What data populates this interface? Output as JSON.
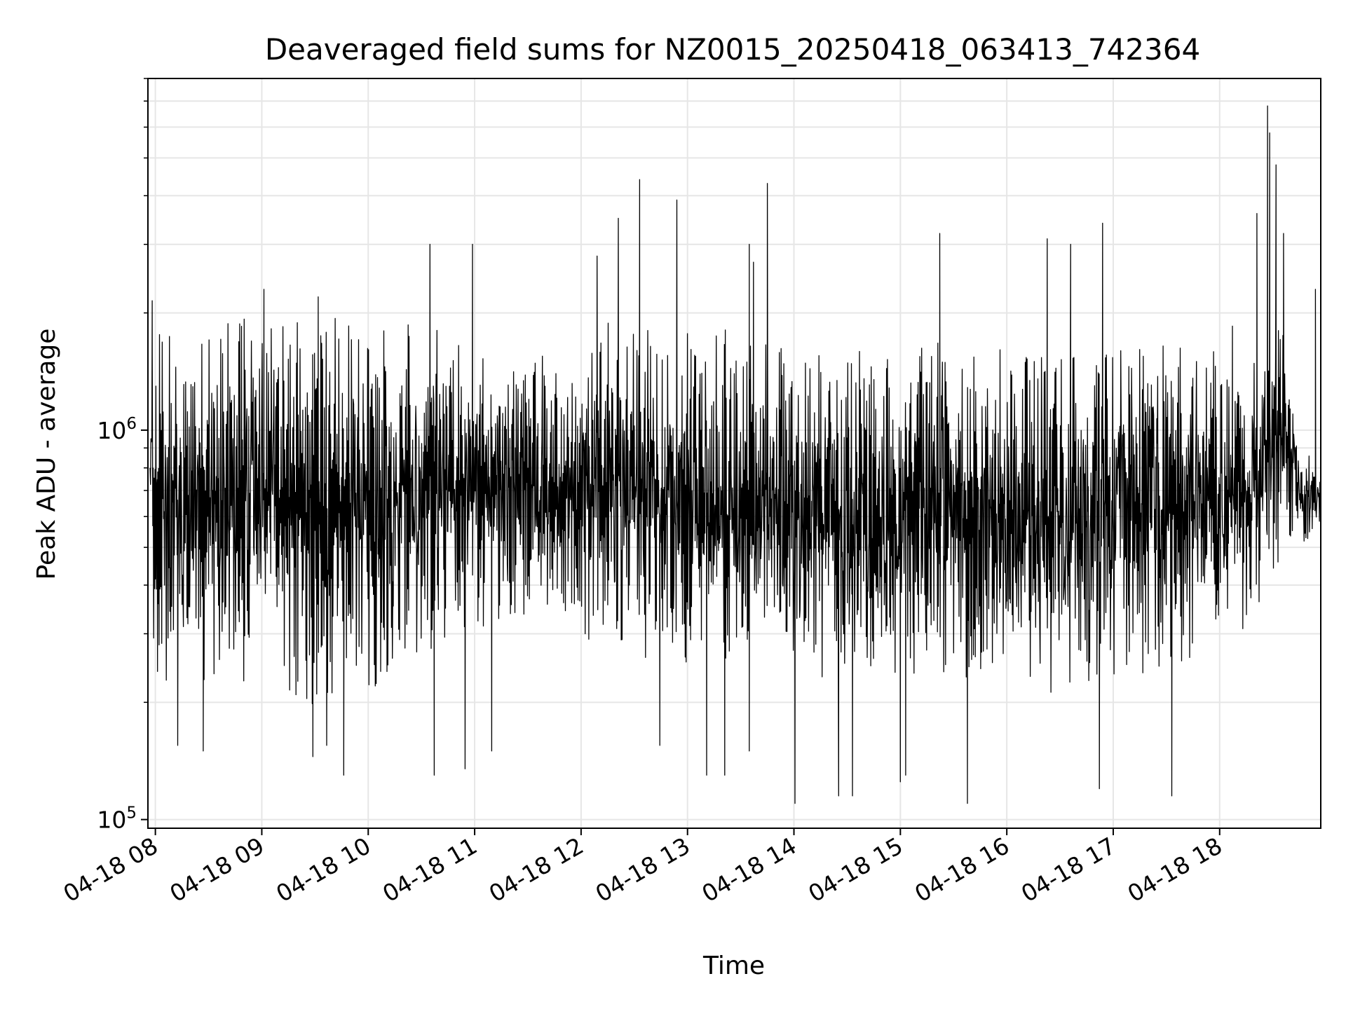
{
  "chart_data": {
    "type": "line",
    "title": "Deaveraged field sums for NZ0015_20250418_063413_742364",
    "xlabel": "Time",
    "ylabel": "Peak ADU - average",
    "yscale": "log",
    "ylim": [
      95000,
      8000000
    ],
    "y_ticks": [
      {
        "value": 100000,
        "base": "10",
        "exp": "5"
      },
      {
        "value": 1000000,
        "base": "10",
        "exp": "6"
      }
    ],
    "x_ticks": [
      "04-18 08",
      "04-18 09",
      "04-18 10",
      "04-18 11",
      "04-18 12",
      "04-18 13",
      "04-18 14",
      "04-18 15",
      "04-18 16",
      "04-18 17",
      "04-18 18"
    ],
    "x_tick_hours": [
      8,
      9,
      10,
      11,
      12,
      13,
      14,
      15,
      16,
      17,
      18
    ],
    "xlim_hours": [
      7.93,
      18.95
    ],
    "grid": true,
    "line_color": "#000000",
    "series": [
      {
        "x_hours": [
          7.95,
          8.1,
          8.25,
          8.5,
          8.75,
          9.0,
          9.25,
          9.5,
          9.75,
          10.0,
          10.25,
          10.5,
          10.75,
          11.0,
          11.25,
          11.5,
          11.75,
          11.95,
          12.05,
          12.25,
          12.5,
          12.75,
          13.0,
          13.25,
          13.5,
          13.75,
          14.0,
          14.25,
          14.5,
          14.75,
          15.0,
          15.25,
          15.5,
          15.75,
          16.0,
          16.25,
          16.5,
          16.75,
          17.0,
          17.25,
          17.5,
          17.75,
          18.0,
          18.25,
          18.45,
          18.5,
          18.6,
          18.75,
          18.95
        ],
        "high": [
          2100000,
          2050000,
          2000000,
          2050000,
          2000000,
          2050000,
          2000000,
          1950000,
          2000000,
          2000000,
          1900000,
          1850000,
          1800000,
          1750000,
          1600000,
          1550000,
          1550000,
          1500000,
          1850000,
          1900000,
          1900000,
          1850000,
          1800000,
          1800000,
          1850000,
          1750000,
          1700000,
          1700000,
          1600000,
          1600000,
          1600000,
          1750000,
          1650000,
          1650000,
          1650000,
          1650000,
          1700000,
          1700000,
          1700000,
          1650000,
          1650000,
          1650000,
          1600000,
          1450000,
          1800000,
          2400000,
          1900000,
          900000,
          850000
        ],
        "low": [
          250000,
          220000,
          200000,
          210000,
          220000,
          230000,
          200000,
          180000,
          190000,
          210000,
          240000,
          260000,
          290000,
          300000,
          320000,
          330000,
          330000,
          340000,
          270000,
          260000,
          240000,
          250000,
          250000,
          250000,
          240000,
          240000,
          230000,
          220000,
          210000,
          220000,
          230000,
          230000,
          230000,
          230000,
          210000,
          210000,
          210000,
          210000,
          220000,
          220000,
          230000,
          240000,
          280000,
          300000,
          380000,
          420000,
          450000,
          500000,
          550000
        ]
      }
    ],
    "spikes": [
      {
        "x": 7.97,
        "y": 2150000
      },
      {
        "x": 8.02,
        "y": 240000
      },
      {
        "x": 8.21,
        "y": 155000
      },
      {
        "x": 8.45,
        "y": 150000
      },
      {
        "x": 9.02,
        "y": 2300000
      },
      {
        "x": 9.53,
        "y": 2200000
      },
      {
        "x": 9.48,
        "y": 145000
      },
      {
        "x": 9.61,
        "y": 155000
      },
      {
        "x": 9.77,
        "y": 130000
      },
      {
        "x": 10.58,
        "y": 3000000
      },
      {
        "x": 10.62,
        "y": 130000
      },
      {
        "x": 10.98,
        "y": 3000000
      },
      {
        "x": 10.91,
        "y": 135000
      },
      {
        "x": 11.16,
        "y": 150000
      },
      {
        "x": 12.15,
        "y": 2800000
      },
      {
        "x": 12.35,
        "y": 3500000
      },
      {
        "x": 12.55,
        "y": 4400000
      },
      {
        "x": 12.9,
        "y": 3900000
      },
      {
        "x": 12.74,
        "y": 155000
      },
      {
        "x": 13.18,
        "y": 130000
      },
      {
        "x": 13.35,
        "y": 130000
      },
      {
        "x": 13.58,
        "y": 3000000
      },
      {
        "x": 13.62,
        "y": 2700000
      },
      {
        "x": 13.75,
        "y": 4300000
      },
      {
        "x": 13.58,
        "y": 150000
      },
      {
        "x": 14.01,
        "y": 110000
      },
      {
        "x": 14.42,
        "y": 115000
      },
      {
        "x": 14.55,
        "y": 115000
      },
      {
        "x": 15.0,
        "y": 125000
      },
      {
        "x": 15.05,
        "y": 130000
      },
      {
        "x": 15.37,
        "y": 3200000
      },
      {
        "x": 15.63,
        "y": 110000
      },
      {
        "x": 16.38,
        "y": 3100000
      },
      {
        "x": 16.6,
        "y": 3000000
      },
      {
        "x": 16.9,
        "y": 3400000
      },
      {
        "x": 16.87,
        "y": 120000
      },
      {
        "x": 17.55,
        "y": 115000
      },
      {
        "x": 18.12,
        "y": 1850000
      },
      {
        "x": 18.35,
        "y": 3600000
      },
      {
        "x": 18.45,
        "y": 6800000
      },
      {
        "x": 18.47,
        "y": 5800000
      },
      {
        "x": 18.53,
        "y": 4800000
      },
      {
        "x": 18.6,
        "y": 3200000
      },
      {
        "x": 18.9,
        "y": 2300000
      }
    ]
  }
}
